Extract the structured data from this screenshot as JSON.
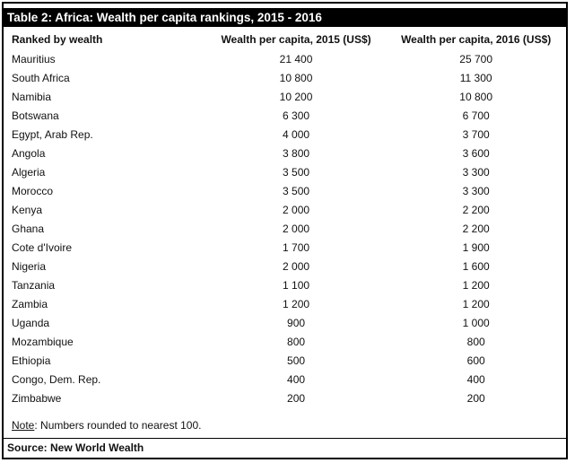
{
  "title": "Table 2: Africa: Wealth per capita rankings, 2015 - 2016",
  "columns": [
    "Ranked by wealth",
    "Wealth per capita, 2015 (US$)",
    "Wealth per capita, 2016 (US$)"
  ],
  "rows": [
    {
      "country": "Mauritius",
      "v2015": "21 400",
      "v2016": "25 700"
    },
    {
      "country": "South Africa",
      "v2015": "10 800",
      "v2016": "11 300"
    },
    {
      "country": "Namibia",
      "v2015": "10 200",
      "v2016": "10 800"
    },
    {
      "country": "Botswana",
      "v2015": "6 300",
      "v2016": "6 700"
    },
    {
      "country": "Egypt, Arab Rep.",
      "v2015": "4 000",
      "v2016": "3 700"
    },
    {
      "country": "Angola",
      "v2015": "3 800",
      "v2016": "3 600"
    },
    {
      "country": "Algeria",
      "v2015": "3 500",
      "v2016": "3 300"
    },
    {
      "country": "Morocco",
      "v2015": "3 500",
      "v2016": "3 300"
    },
    {
      "country": "Kenya",
      "v2015": "2 000",
      "v2016": "2 200"
    },
    {
      "country": "Ghana",
      "v2015": "2 000",
      "v2016": "2 200"
    },
    {
      "country": "Cote d'Ivoire",
      "v2015": "1 700",
      "v2016": "1 900"
    },
    {
      "country": "Nigeria",
      "v2015": "2 000",
      "v2016": "1 600"
    },
    {
      "country": "Tanzania",
      "v2015": "1 100",
      "v2016": "1 200"
    },
    {
      "country": "Zambia",
      "v2015": "1 200",
      "v2016": "1 200"
    },
    {
      "country": "Uganda",
      "v2015": "900",
      "v2016": "1 000"
    },
    {
      "country": "Mozambique",
      "v2015": "800",
      "v2016": "800"
    },
    {
      "country": "Ethiopia",
      "v2015": "500",
      "v2016": "600"
    },
    {
      "country": "Congo, Dem. Rep.",
      "v2015": "400",
      "v2016": "400"
    },
    {
      "country": "Zimbabwe",
      "v2015": "200",
      "v2016": "200"
    }
  ],
  "note": {
    "label": "Note",
    "text": ": Numbers rounded to nearest 100."
  },
  "source": "Source: New World Wealth",
  "colors": {
    "title_bar_bg": "#000000",
    "title_bar_text": "#ffffff",
    "border": "#000000",
    "text": "#111111"
  },
  "chart_data": {
    "type": "table",
    "title": "Table 2: Africa: Wealth per capita rankings, 2015 - 2016",
    "columns": [
      "Ranked by wealth",
      "Wealth per capita, 2015 (US$)",
      "Wealth per capita, 2016 (US$)"
    ],
    "categories": [
      "Mauritius",
      "South Africa",
      "Namibia",
      "Botswana",
      "Egypt, Arab Rep.",
      "Angola",
      "Algeria",
      "Morocco",
      "Kenya",
      "Ghana",
      "Cote d'Ivoire",
      "Nigeria",
      "Tanzania",
      "Zambia",
      "Uganda",
      "Mozambique",
      "Ethiopia",
      "Congo, Dem. Rep.",
      "Zimbabwe"
    ],
    "series": [
      {
        "name": "Wealth per capita, 2015 (US$)",
        "values": [
          21400,
          10800,
          10200,
          6300,
          4000,
          3800,
          3500,
          3500,
          2000,
          2000,
          1700,
          2000,
          1100,
          1200,
          900,
          800,
          500,
          400,
          200
        ]
      },
      {
        "name": "Wealth per capita, 2016 (US$)",
        "values": [
          25700,
          11300,
          10800,
          6700,
          3700,
          3600,
          3300,
          3300,
          2200,
          2200,
          1900,
          1600,
          1200,
          1200,
          1000,
          800,
          600,
          400,
          200
        ]
      }
    ],
    "note": "Numbers rounded to nearest 100.",
    "source": "New World Wealth"
  }
}
